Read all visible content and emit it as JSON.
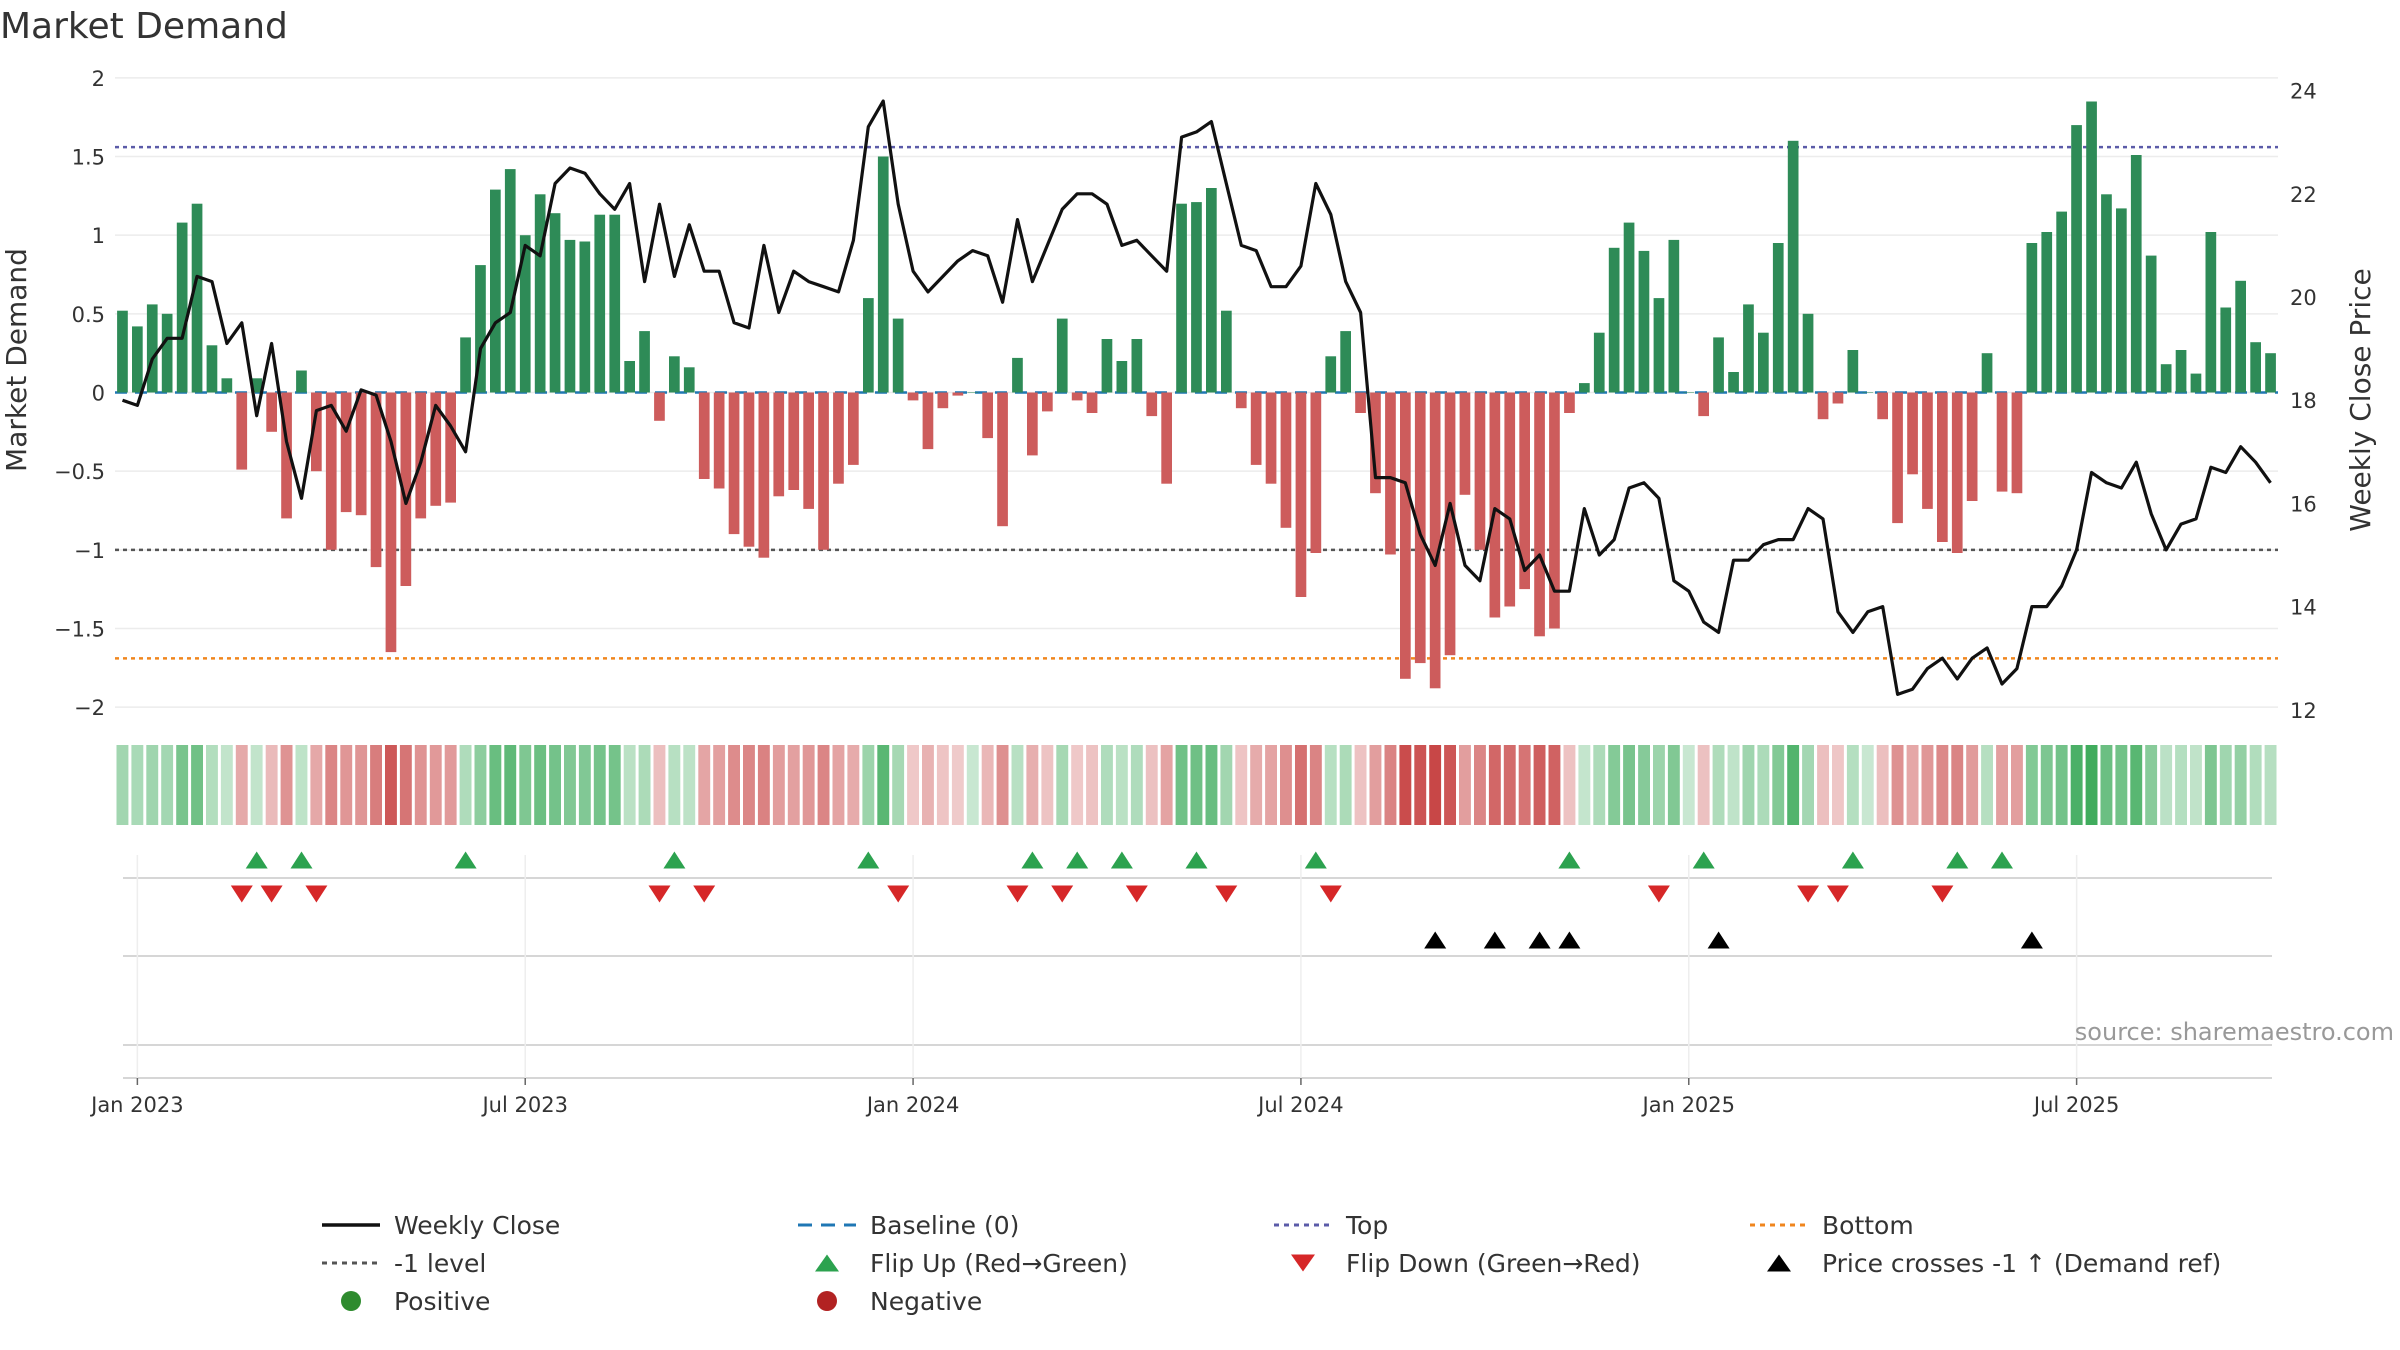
{
  "chart_data": {
    "type": "bar+line",
    "title": "Market Demand",
    "ylabel_left": "Market Demand",
    "ylabel_right": "Weekly Close Price",
    "ylim_left": [
      -2.05,
      2.05
    ],
    "ylim_right": [
      11.9,
      24.4
    ],
    "yticks_left": [
      "2",
      "1.5",
      "1",
      "0.5",
      "0",
      "−0.5",
      "−1",
      "−1.5",
      "−2"
    ],
    "yticks_left_values": [
      2,
      1.5,
      1,
      0.5,
      0,
      -0.5,
      -1,
      -1.5,
      -2
    ],
    "yticks_right": [
      "24",
      "22",
      "20",
      "18",
      "16",
      "14",
      "12"
    ],
    "yticks_right_values": [
      24,
      22,
      20,
      18,
      16,
      14,
      12
    ],
    "x_tick_labels": [
      "Jan 2023",
      "Jul 2023",
      "Jan 2024",
      "Jul 2024",
      "Jan 2025",
      "Jul 2025"
    ],
    "x_tick_weeks": [
      1,
      27,
      53,
      79,
      105,
      131
    ],
    "reference_lines": {
      "top": 1.56,
      "minus_one": -1,
      "bottom": -1.69,
      "baseline": 0
    },
    "demand": [
      0.52,
      0.42,
      0.56,
      0.5,
      1.08,
      1.2,
      0.3,
      0.09,
      -0.49,
      0.09,
      -0.25,
      -0.8,
      0.14,
      -0.5,
      -1.0,
      -0.76,
      -0.78,
      -1.11,
      -1.65,
      -1.23,
      -0.8,
      -0.72,
      -0.7,
      0.35,
      0.81,
      1.29,
      1.42,
      1.0,
      1.26,
      1.14,
      0.97,
      0.96,
      1.13,
      1.13,
      0.2,
      0.39,
      -0.18,
      0.23,
      0.16,
      -0.55,
      -0.61,
      -0.9,
      -0.98,
      -1.05,
      -0.66,
      -0.62,
      -0.74,
      -1.0,
      -0.58,
      -0.46,
      0.6,
      1.5,
      0.47,
      -0.05,
      -0.36,
      -0.1,
      -0.02,
      0.0,
      -0.29,
      -0.85,
      0.22,
      -0.4,
      -0.12,
      0.47,
      -0.05,
      -0.13,
      0.34,
      0.2,
      0.34,
      -0.15,
      -0.58,
      1.2,
      1.21,
      1.3,
      0.52,
      -0.1,
      -0.46,
      -0.58,
      -0.86,
      -1.3,
      -1.02,
      0.23,
      0.39,
      -0.13,
      -0.64,
      -1.03,
      -1.82,
      -1.72,
      -1.88,
      -1.67,
      -0.65,
      -1.0,
      -1.43,
      -1.36,
      -1.25,
      -1.55,
      -1.5,
      -0.13,
      0.06,
      0.38,
      0.92,
      1.08,
      0.9,
      0.6,
      0.97,
      0.0,
      -0.15,
      0.35,
      0.13,
      0.56,
      0.38,
      0.95,
      1.6,
      0.5,
      -0.17,
      -0.07,
      0.27,
      0.0,
      -0.17,
      -0.83,
      -0.52,
      -0.74,
      -0.95,
      -1.02,
      -0.69,
      0.25,
      -0.63,
      -0.64,
      0.95,
      1.02,
      1.15,
      1.7,
      1.85,
      1.26,
      1.17,
      1.51,
      0.87,
      0.18,
      0.27,
      0.12,
      1.02,
      0.54,
      0.71,
      0.32,
      0.25
    ],
    "close": [
      18.0,
      17.9,
      18.8,
      19.2,
      19.2,
      20.4,
      20.3,
      19.1,
      19.5,
      17.7,
      19.1,
      17.2,
      16.1,
      17.8,
      17.9,
      17.4,
      18.2,
      18.1,
      17.2,
      16.0,
      16.8,
      17.9,
      17.5,
      17.0,
      19.0,
      19.5,
      19.7,
      21.0,
      20.8,
      22.2,
      22.5,
      22.4,
      22.0,
      21.7,
      22.2,
      20.3,
      21.8,
      20.4,
      21.4,
      20.5,
      20.5,
      19.5,
      19.4,
      21.0,
      19.7,
      20.5,
      20.3,
      20.2,
      20.1,
      21.1,
      23.3,
      23.8,
      21.8,
      20.5,
      20.1,
      20.4,
      20.7,
      20.9,
      20.8,
      19.9,
      21.5,
      20.3,
      21.0,
      21.7,
      22.0,
      22.0,
      21.8,
      21.0,
      21.1,
      20.8,
      20.5,
      23.1,
      23.2,
      23.4,
      22.2,
      21.0,
      20.9,
      20.2,
      20.2,
      20.6,
      22.2,
      21.6,
      20.3,
      19.7,
      16.5,
      16.5,
      16.4,
      15.4,
      14.8,
      16.0,
      14.8,
      14.5,
      15.9,
      15.7,
      14.7,
      15.0,
      14.3,
      14.3,
      15.9,
      15.0,
      15.3,
      16.3,
      16.4,
      16.1,
      14.5,
      14.3,
      13.7,
      13.5,
      14.9,
      14.9,
      15.2,
      15.3,
      15.3,
      15.9,
      15.7,
      13.9,
      13.5,
      13.9,
      14.0,
      12.3,
      12.4,
      12.8,
      13.0,
      12.6,
      13.0,
      13.2,
      12.5,
      12.8,
      14.0,
      14.0,
      14.4,
      15.1,
      16.6,
      16.4,
      16.3,
      16.8,
      15.8,
      15.1,
      15.6,
      15.7,
      16.7,
      16.6,
      17.1,
      16.8,
      16.4
    ],
    "flip_up_weeks": [
      9,
      12,
      23,
      37,
      50,
      61,
      64,
      67,
      72,
      80,
      97,
      106,
      116,
      123,
      126
    ],
    "flip_down_weeks": [
      8,
      10,
      13,
      36,
      39,
      52,
      60,
      63,
      68,
      74,
      81,
      103,
      113,
      115,
      122
    ],
    "price_cross_weeks": [
      88,
      92,
      95,
      97,
      107,
      128
    ],
    "source": "source: sharemaestro.com",
    "legend": [
      {
        "label": "Weekly Close",
        "kind": "solid-line",
        "color": "#111111"
      },
      {
        "label": "Baseline (0)",
        "kind": "dash-line",
        "color": "#1f77b4"
      },
      {
        "label": "Top",
        "kind": "dot-line",
        "color": "#5b5ba8"
      },
      {
        "label": "Bottom",
        "kind": "dot-line",
        "color": "#f0861e"
      },
      {
        "label": "-1 level",
        "kind": "dot-line",
        "color": "#555555"
      },
      {
        "label": "Flip Up (Red→Green)",
        "kind": "triangle-up",
        "color": "#2ca24f"
      },
      {
        "label": "Flip Down (Green→Red)",
        "kind": "triangle-down",
        "color": "#d62728"
      },
      {
        "label": "Price crosses -1 ↑ (Demand ref)",
        "kind": "triangle-up",
        "color": "#000000"
      },
      {
        "label": "Positive",
        "kind": "circle",
        "color": "#2e8b2e"
      },
      {
        "label": "Negative",
        "kind": "circle",
        "color": "#b22222"
      }
    ],
    "colors": {
      "positive_bar": "#2e8b57",
      "negative_bar": "#cd5c5c",
      "price_line": "#111111"
    }
  }
}
